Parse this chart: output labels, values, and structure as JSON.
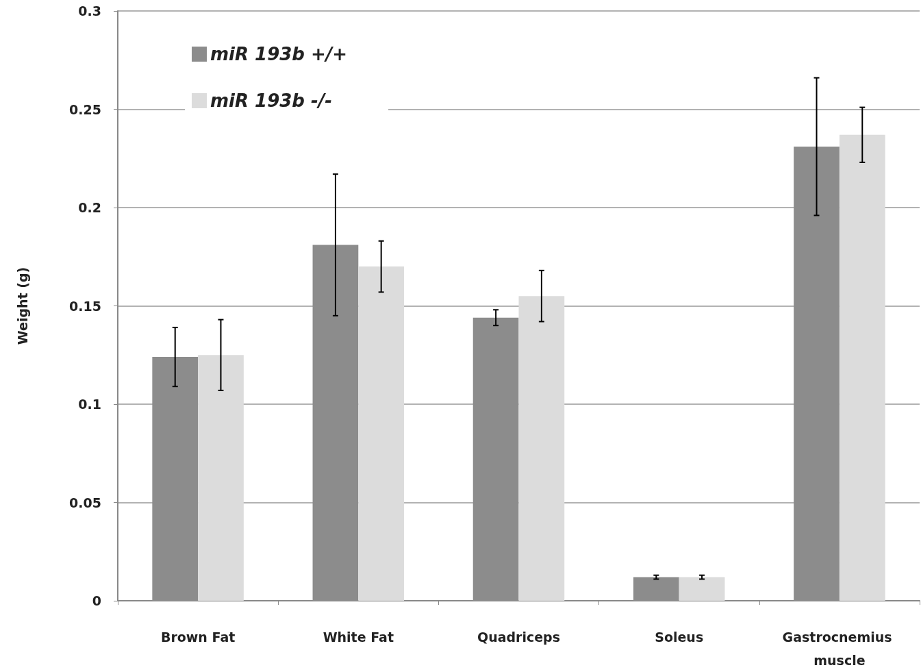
{
  "chart_data": {
    "type": "bar",
    "ylabel": "Weight (g)",
    "categories": [
      "Brown Fat",
      "White Fat",
      "Quadriceps",
      "Soleus",
      "Gastrocnemius muscle"
    ],
    "series": [
      {
        "name": "miR 193b +/+",
        "color": "#8c8c8c",
        "values": [
          0.124,
          0.181,
          0.144,
          0.012,
          0.231
        ],
        "errors": [
          0.015,
          0.036,
          0.004,
          0.001,
          0.035
        ]
      },
      {
        "name": "miR 193b -/-",
        "color": "#dcdcdc",
        "values": [
          0.125,
          0.17,
          0.155,
          0.012,
          0.237
        ],
        "errors": [
          0.018,
          0.013,
          0.013,
          0.001,
          0.014
        ]
      }
    ],
    "ylim": [
      0,
      0.3
    ],
    "yticks": [
      0,
      0.05,
      0.1,
      0.15,
      0.2,
      0.25,
      0.3
    ],
    "grid": "y",
    "legend": "top left"
  }
}
